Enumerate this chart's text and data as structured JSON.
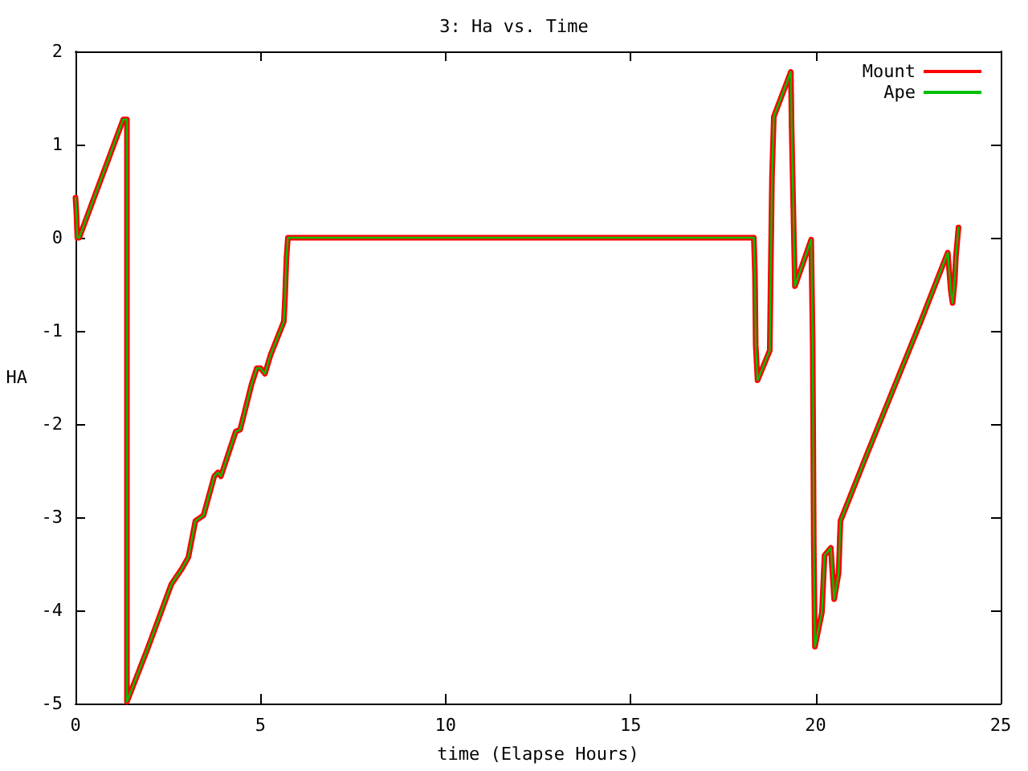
{
  "chart_data": {
    "type": "line",
    "title": "3: Ha vs. Time",
    "xlabel": "time (Elapse Hours)",
    "ylabel": "HA",
    "xlim": [
      0,
      25
    ],
    "xticks": [
      0,
      5,
      10,
      15,
      20,
      25
    ],
    "ylim": [
      -5,
      2
    ],
    "yticks": [
      -5,
      -4,
      -3,
      -2,
      -1,
      0,
      1,
      2
    ],
    "grid": false,
    "legend": "top right",
    "marker": "none",
    "line_style": "solid",
    "x": [
      0,
      0.02,
      0.05,
      0.1,
      1.29,
      1.39,
      1.39,
      1.39,
      1.39,
      1.94,
      2.59,
      2.88,
      3.05,
      3.24,
      3.46,
      3.75,
      3.85,
      3.93,
      4.33,
      4.45,
      4.76,
      4.9,
      5.0,
      5.12,
      5.27,
      5.63,
      5.66,
      5.7,
      5.74,
      18.33,
      18.36,
      18.38,
      18.43,
      18.76,
      18.78,
      18.82,
      18.87,
      19.33,
      19.35,
      19.41,
      19.44,
      19.88,
      19.92,
      19.95,
      19.98,
      20.17,
      20.24,
      20.41,
      20.5,
      20.62,
      20.67,
      21.4,
      22.84,
      23.57,
      23.65,
      23.7,
      23.76,
      23.79,
      23.86
    ],
    "series": [
      {
        "name": "Mount",
        "color": "#ff0000",
        "values": [
          0.43,
          0.3,
          0.0,
          0.0,
          1.27,
          1.27,
          -0.28,
          -3.43,
          -4.98,
          -4.42,
          -3.72,
          -3.55,
          -3.43,
          -3.04,
          -2.98,
          -2.56,
          -2.52,
          -2.56,
          -2.08,
          -2.06,
          -1.57,
          -1.4,
          -1.4,
          -1.46,
          -1.26,
          -0.9,
          -0.66,
          -0.22,
          0.0,
          0.0,
          -0.39,
          -1.15,
          -1.53,
          -1.21,
          -0.57,
          0.65,
          1.3,
          1.78,
          1.2,
          0.05,
          -0.52,
          -0.02,
          -1.12,
          -3.29,
          -4.39,
          -4.02,
          -3.41,
          -3.33,
          -3.88,
          -3.6,
          -3.04,
          -2.31,
          -0.9,
          -0.16,
          -0.56,
          -0.7,
          -0.45,
          -0.2,
          0.11
        ]
      },
      {
        "name": "Ape",
        "color": "#00c000",
        "values": [
          0.43,
          0.3,
          0.0,
          0.0,
          1.27,
          1.27,
          -0.28,
          -3.43,
          -4.98,
          -4.42,
          -3.72,
          -3.55,
          -3.43,
          -3.04,
          -2.98,
          -2.56,
          -2.52,
          -2.56,
          -2.08,
          -2.06,
          -1.57,
          -1.4,
          -1.4,
          -1.46,
          -1.26,
          -0.9,
          -0.66,
          -0.22,
          0.0,
          0.0,
          -0.39,
          -1.15,
          -1.53,
          -1.21,
          -0.57,
          0.65,
          1.3,
          1.78,
          1.2,
          0.05,
          -0.52,
          -0.02,
          -1.12,
          -3.29,
          -4.39,
          -4.02,
          -3.41,
          -3.33,
          -3.88,
          -3.6,
          -3.04,
          -2.31,
          -0.9,
          -0.16,
          -0.56,
          -0.7,
          -0.45,
          -0.2,
          0.11
        ]
      }
    ]
  }
}
